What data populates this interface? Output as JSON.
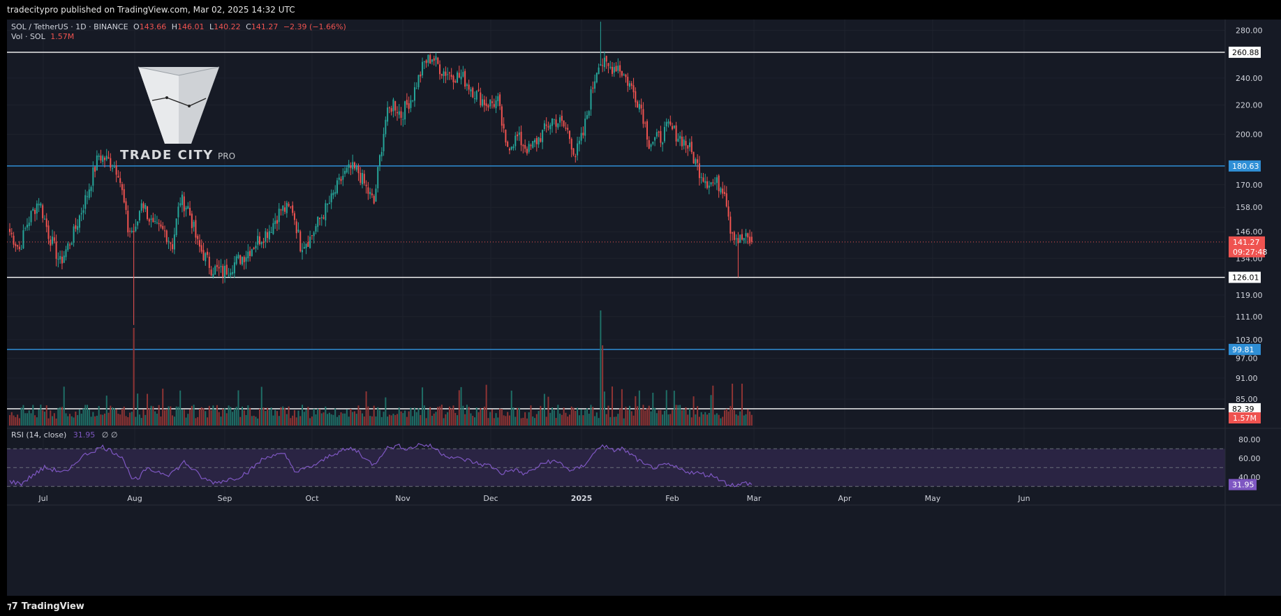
{
  "header": {
    "publish_line": "tradecitypro published on TradingView.com, Mar 02, 2025 14:32 UTC"
  },
  "footer": {
    "brand": "TradingView"
  },
  "legend": {
    "symbol": "SOL / TetherUS · 1D · BINANCE",
    "o_label": "O",
    "o_value": "143.66",
    "h_label": "H",
    "h_value": "146.01",
    "l_label": "L",
    "l_value": "140.22",
    "c_label": "C",
    "c_value": "141.27",
    "change": "−2.39 (−1.66%)",
    "vol_label": "Vol · SOL",
    "vol_value": "1.57M"
  },
  "logo": {
    "title": "TRADE CITY",
    "suffix": "PRO"
  },
  "rsi": {
    "label": "RSI (14, close)",
    "value": "31.95",
    "extra": "∅ ∅"
  },
  "colors": {
    "bg": "#161a25",
    "grid": "#1e222d",
    "up": "#26a69a",
    "down": "#ef5350",
    "blue_line": "#2f8fd6",
    "white_line": "#ffffff",
    "rsi": "#7e57c2",
    "rsi_band": "#2a2443"
  },
  "chart_data": {
    "type": "candlestick",
    "title": "SOL / TetherUS · 1D · BINANCE",
    "y_scale": "log",
    "ylim": [
      82,
      290
    ],
    "y_ticks": [
      "280.00",
      "240.00",
      "220.00",
      "200.00",
      "170.00",
      "158.00",
      "146.00",
      "134.00",
      "119.00",
      "111.00",
      "103.00",
      "97.00",
      "91.00",
      "85.00"
    ],
    "x_ticks": [
      "Jul",
      "Aug",
      "Sep",
      "Oct",
      "Nov",
      "Dec",
      "2025",
      "Feb",
      "Mar",
      "Apr",
      "May",
      "Jun"
    ],
    "levels": [
      {
        "value": 260.88,
        "label": "260.88",
        "kind": "white"
      },
      {
        "value": 180.63,
        "label": "180.63",
        "kind": "blue"
      },
      {
        "value": 126.01,
        "label": "126.01",
        "kind": "white"
      },
      {
        "value": 99.81,
        "label": "99.81",
        "kind": "blue"
      },
      {
        "value": 82.39,
        "label": "82.39",
        "kind": "white"
      }
    ],
    "last_price": {
      "value": 141.27,
      "label": "141.27",
      "countdown": "09:27:48"
    },
    "volume_last_label": "1.57M",
    "anchors": [
      [
        0,
        146
      ],
      [
        5,
        138
      ],
      [
        9,
        150
      ],
      [
        15,
        162
      ],
      [
        20,
        145
      ],
      [
        26,
        132
      ],
      [
        33,
        145
      ],
      [
        40,
        165
      ],
      [
        46,
        187
      ],
      [
        52,
        183
      ],
      [
        56,
        178
      ],
      [
        61,
        147
      ],
      [
        65,
        146
      ],
      [
        68,
        162
      ],
      [
        74,
        148
      ],
      [
        80,
        146
      ],
      [
        84,
        140
      ],
      [
        88,
        162
      ],
      [
        92,
        158
      ],
      [
        97,
        140
      ],
      [
        104,
        130
      ],
      [
        110,
        128
      ],
      [
        116,
        132
      ],
      [
        122,
        136
      ],
      [
        128,
        142
      ],
      [
        134,
        147
      ],
      [
        140,
        157
      ],
      [
        146,
        157
      ],
      [
        150,
        140
      ],
      [
        155,
        143
      ],
      [
        160,
        152
      ],
      [
        166,
        162
      ],
      [
        172,
        175
      ],
      [
        176,
        179
      ],
      [
        180,
        177
      ],
      [
        184,
        168
      ],
      [
        188,
        160
      ],
      [
        194,
        210
      ],
      [
        198,
        222
      ],
      [
        202,
        213
      ],
      [
        208,
        227
      ],
      [
        214,
        252
      ],
      [
        218,
        257
      ],
      [
        223,
        246
      ],
      [
        228,
        243
      ],
      [
        234,
        240
      ],
      [
        240,
        229
      ],
      [
        246,
        221
      ],
      [
        252,
        222
      ],
      [
        256,
        192
      ],
      [
        262,
        198
      ],
      [
        268,
        190
      ],
      [
        274,
        199
      ],
      [
        280,
        210
      ],
      [
        284,
        208
      ],
      [
        288,
        202
      ],
      [
        292,
        187
      ],
      [
        296,
        200
      ],
      [
        300,
        227
      ],
      [
        304,
        254
      ],
      [
        309,
        248
      ],
      [
        314,
        250
      ],
      [
        320,
        235
      ],
      [
        326,
        218
      ],
      [
        330,
        195
      ],
      [
        336,
        198
      ],
      [
        340,
        205
      ],
      [
        346,
        198
      ],
      [
        350,
        193
      ],
      [
        356,
        178
      ],
      [
        360,
        172
      ],
      [
        366,
        170
      ],
      [
        369,
        168
      ],
      [
        372,
        148
      ],
      [
        376,
        142
      ],
      [
        379,
        143
      ],
      [
        383,
        141.27
      ]
    ],
    "rsi_values": [
      [
        0,
        35
      ],
      [
        6,
        33
      ],
      [
        12,
        42
      ],
      [
        18,
        50
      ],
      [
        24,
        47
      ],
      [
        30,
        45
      ],
      [
        36,
        60
      ],
      [
        42,
        67
      ],
      [
        48,
        72
      ],
      [
        54,
        66
      ],
      [
        58,
        62
      ],
      [
        62,
        42
      ],
      [
        66,
        36
      ],
      [
        70,
        48
      ],
      [
        76,
        46
      ],
      [
        82,
        43
      ],
      [
        86,
        48
      ],
      [
        90,
        56
      ],
      [
        94,
        49
      ],
      [
        100,
        38
      ],
      [
        106,
        34
      ],
      [
        112,
        37
      ],
      [
        118,
        40
      ],
      [
        124,
        47
      ],
      [
        130,
        58
      ],
      [
        136,
        64
      ],
      [
        142,
        63
      ],
      [
        148,
        45
      ],
      [
        154,
        50
      ],
      [
        160,
        55
      ],
      [
        166,
        64
      ],
      [
        172,
        68
      ],
      [
        176,
        70
      ],
      [
        180,
        67
      ],
      [
        184,
        58
      ],
      [
        188,
        53
      ],
      [
        194,
        70
      ],
      [
        200,
        73
      ],
      [
        206,
        70
      ],
      [
        212,
        75
      ],
      [
        218,
        72
      ],
      [
        224,
        64
      ],
      [
        230,
        60
      ],
      [
        236,
        58
      ],
      [
        242,
        54
      ],
      [
        248,
        52
      ],
      [
        254,
        44
      ],
      [
        260,
        48
      ],
      [
        266,
        43
      ],
      [
        272,
        50
      ],
      [
        278,
        57
      ],
      [
        284,
        55
      ],
      [
        290,
        46
      ],
      [
        296,
        52
      ],
      [
        302,
        66
      ],
      [
        306,
        75
      ],
      [
        310,
        68
      ],
      [
        316,
        70
      ],
      [
        322,
        62
      ],
      [
        328,
        52
      ],
      [
        334,
        50
      ],
      [
        340,
        53
      ],
      [
        346,
        48
      ],
      [
        352,
        45
      ],
      [
        358,
        43
      ],
      [
        364,
        41
      ],
      [
        370,
        33
      ],
      [
        376,
        31
      ],
      [
        380,
        34
      ],
      [
        383,
        31.95
      ]
    ]
  }
}
